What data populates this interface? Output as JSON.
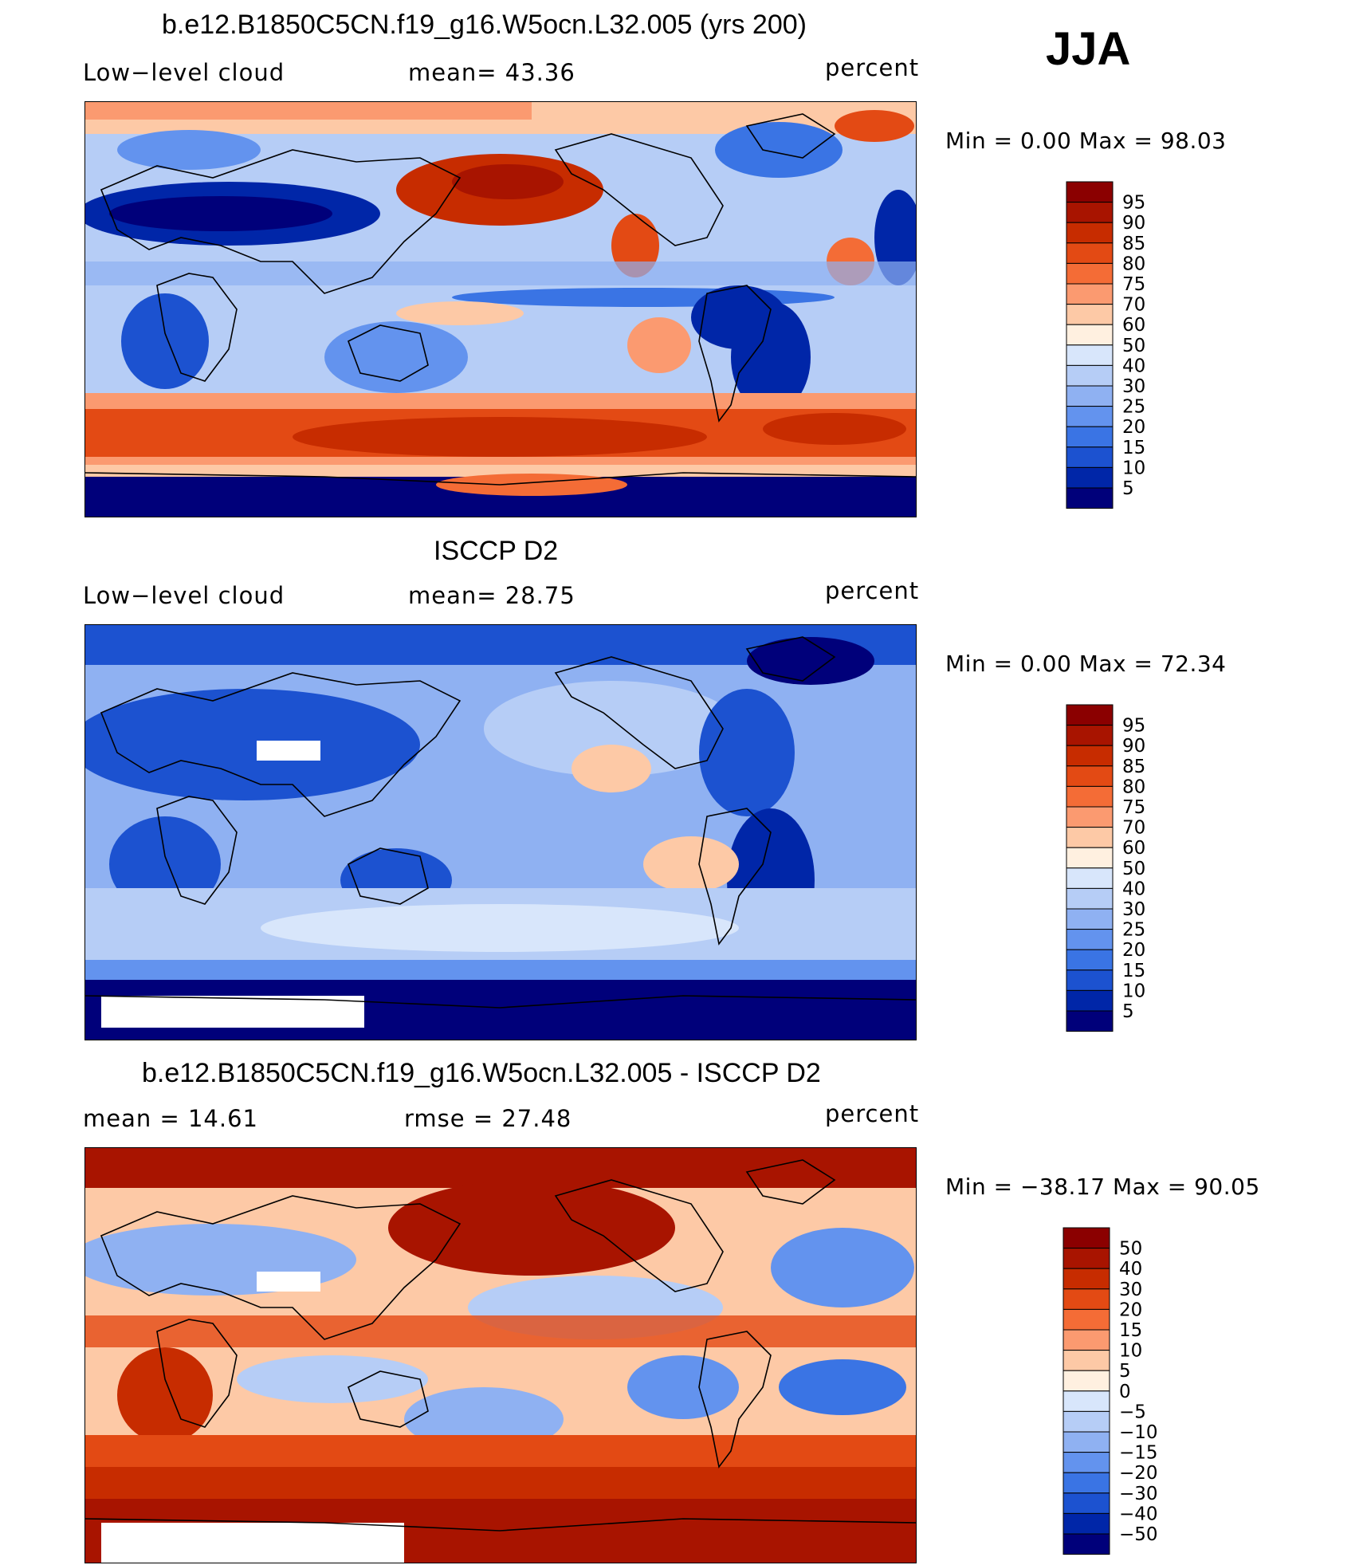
{
  "season": "JJA",
  "chart_data": [
    {
      "type": "heatmap",
      "title": "b.e12.B1850C5CN.f19_g16.W5ocn.L32.005 (yrs 200)",
      "left_label": "Low−level cloud",
      "center_label": "mean=   43.36",
      "units": "percent",
      "mean": 43.36,
      "min": 0.0,
      "max": 98.03,
      "minmax_text": "Min =     0.00  Max =    98.03",
      "levels": [
        "95",
        "90",
        "85",
        "80",
        "75",
        "70",
        "60",
        "50",
        "40",
        "30",
        "25",
        "20",
        "15",
        "10",
        "5"
      ],
      "colors": [
        "#8b0000",
        "#a81400",
        "#c72c00",
        "#e34a14",
        "#f46c36",
        "#fb9a70",
        "#fdc9a6",
        "#fff0e0",
        "#d8e6fb",
        "#b6cdf6",
        "#8fb1f2",
        "#6393ee",
        "#3a74e4",
        "#1c52d0",
        "#0026a8",
        "#00007a"
      ]
    },
    {
      "type": "heatmap",
      "title": "ISCCP D2",
      "left_label": "Low−level cloud",
      "center_label": "mean=   28.75",
      "units": "percent",
      "mean": 28.75,
      "min": 0.0,
      "max": 72.34,
      "minmax_text": "Min =     0.00  Max =    72.34",
      "levels": [
        "95",
        "90",
        "85",
        "80",
        "75",
        "70",
        "60",
        "50",
        "40",
        "30",
        "25",
        "20",
        "15",
        "10",
        "5"
      ],
      "colors": [
        "#8b0000",
        "#a81400",
        "#c72c00",
        "#e34a14",
        "#f46c36",
        "#fb9a70",
        "#fdc9a6",
        "#fff0e0",
        "#d8e6fb",
        "#b6cdf6",
        "#8fb1f2",
        "#6393ee",
        "#3a74e4",
        "#1c52d0",
        "#0026a8",
        "#00007a"
      ]
    },
    {
      "type": "heatmap",
      "title": "b.e12.B1850C5CN.f19_g16.W5ocn.L32.005 - ISCCP D2",
      "left_label": "mean  =    14.61",
      "center_label": "rmse  =    27.48",
      "units": "percent",
      "mean": 14.61,
      "rmse": 27.48,
      "min": -38.17,
      "max": 90.05,
      "minmax_text": "Min  = −38.17  Max  =    90.05",
      "levels": [
        "50",
        "40",
        "30",
        "20",
        "15",
        "10",
        "5",
        "0",
        "−5",
        "−10",
        "−15",
        "−20",
        "−30",
        "−40",
        "−50"
      ],
      "colors": [
        "#8b0000",
        "#a81400",
        "#c72c00",
        "#e34a14",
        "#f46c36",
        "#fb9a70",
        "#fdc9a6",
        "#fff0e0",
        "#d8e6fb",
        "#b6cdf6",
        "#8fb1f2",
        "#6393ee",
        "#3a74e4",
        "#1c52d0",
        "#0026a8",
        "#00007a"
      ]
    }
  ]
}
